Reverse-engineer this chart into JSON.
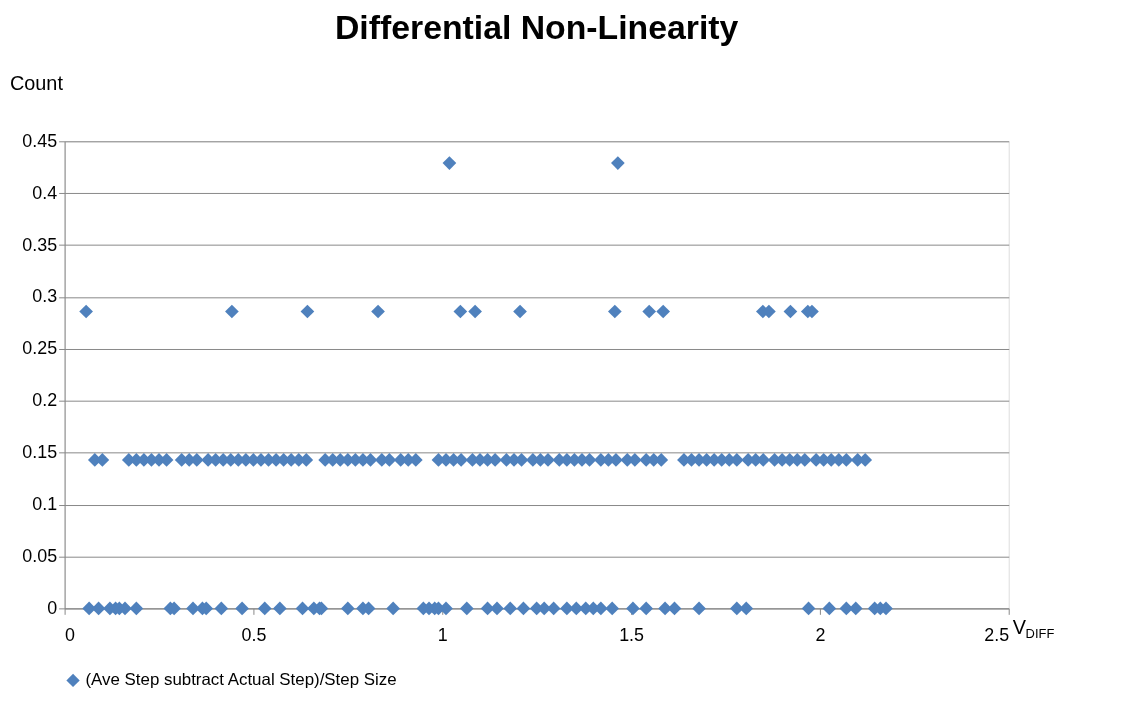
{
  "chart_data": {
    "type": "scatter",
    "title": "Differential Non-Linearity",
    "ylabel": "Count",
    "xlabel": "V$_{DIFF}$",
    "x": [
      0.057,
      0.443,
      0.643,
      0.83,
      1.048,
      1.087,
      1.206,
      1.457,
      1.548,
      1.585,
      1.849,
      1.865,
      1.922,
      1.968,
      1.979,
      1.019,
      1.465,
      0.08,
      0.1,
      0.17,
      0.19,
      0.21,
      0.23,
      0.25,
      0.27,
      0.31,
      0.33,
      0.35,
      0.38,
      0.4,
      0.42,
      0.44,
      0.46,
      0.48,
      0.5,
      0.52,
      0.54,
      0.56,
      0.58,
      0.6,
      0.62,
      0.64,
      0.69,
      0.71,
      0.73,
      0.75,
      0.77,
      0.79,
      0.81,
      0.84,
      0.86,
      0.89,
      0.91,
      0.93,
      0.99,
      1.01,
      1.03,
      1.05,
      1.08,
      1.1,
      1.12,
      1.14,
      1.17,
      1.19,
      1.21,
      1.24,
      1.26,
      1.28,
      1.31,
      1.33,
      1.35,
      1.37,
      1.39,
      1.42,
      1.44,
      1.46,
      1.49,
      1.51,
      1.54,
      1.56,
      1.58,
      1.64,
      1.66,
      1.68,
      1.7,
      1.72,
      1.74,
      1.76,
      1.78,
      1.81,
      1.83,
      1.85,
      1.88,
      1.9,
      1.92,
      1.94,
      1.96,
      1.99,
      2.01,
      2.03,
      2.05,
      2.07,
      2.1,
      2.12,
      0.065,
      0.09,
      0.12,
      0.135,
      0.145,
      0.16,
      0.19,
      0.28,
      0.29,
      0.34,
      0.365,
      0.375,
      0.415,
      0.47,
      0.53,
      0.57,
      0.63,
      0.66,
      0.675,
      0.68,
      0.75,
      0.79,
      0.805,
      0.87,
      0.95,
      0.965,
      0.98,
      0.99,
      1.01,
      1.065,
      1.12,
      1.145,
      1.18,
      1.215,
      1.25,
      1.27,
      1.295,
      1.33,
      1.355,
      1.38,
      1.4,
      1.42,
      1.45,
      1.505,
      1.54,
      1.59,
      1.615,
      1.68,
      1.78,
      1.805,
      1.97,
      2.025,
      2.07,
      2.095,
      2.145,
      2.16,
      2.175
    ],
    "series": [
      {
        "name": "(Ave Step subtract Actual Step)/Step Size",
        "color": "#4f81bd",
        "values": [
          0.286,
          0.286,
          0.286,
          0.286,
          0.286,
          0.286,
          0.286,
          0.286,
          0.286,
          0.286,
          0.286,
          0.286,
          0.286,
          0.286,
          0.286,
          0.429,
          0.429,
          0.143,
          0.143,
          0.143,
          0.143,
          0.143,
          0.143,
          0.143,
          0.143,
          0.143,
          0.143,
          0.143,
          0.143,
          0.143,
          0.143,
          0.143,
          0.143,
          0.143,
          0.143,
          0.143,
          0.143,
          0.143,
          0.143,
          0.143,
          0.143,
          0.143,
          0.143,
          0.143,
          0.143,
          0.143,
          0.143,
          0.143,
          0.143,
          0.143,
          0.143,
          0.143,
          0.143,
          0.143,
          0.143,
          0.143,
          0.143,
          0.143,
          0.143,
          0.143,
          0.143,
          0.143,
          0.143,
          0.143,
          0.143,
          0.143,
          0.143,
          0.143,
          0.143,
          0.143,
          0.143,
          0.143,
          0.143,
          0.143,
          0.143,
          0.143,
          0.143,
          0.143,
          0.143,
          0.143,
          0.143,
          0.143,
          0.143,
          0.143,
          0.143,
          0.143,
          0.143,
          0.143,
          0.143,
          0.143,
          0.143,
          0.143,
          0.143,
          0.143,
          0.143,
          0.143,
          0.143,
          0.143,
          0.143,
          0.143,
          0.143,
          0.143,
          0.143,
          0.143,
          0,
          0,
          0,
          0,
          0,
          0,
          0,
          0,
          0,
          0,
          0,
          0,
          0,
          0,
          0,
          0,
          0,
          0,
          0,
          0,
          0,
          0,
          0,
          0,
          0,
          0,
          0,
          0,
          0,
          0,
          0,
          0,
          0,
          0,
          0,
          0,
          0,
          0,
          0,
          0,
          0,
          0,
          0,
          0,
          0,
          0,
          0,
          0,
          0,
          0,
          0,
          0,
          0,
          0,
          0,
          0,
          0
        ]
      }
    ],
    "xlim": [
      0,
      2.5
    ],
    "xticks": [
      0,
      0.5,
      1,
      1.5,
      2,
      2.5
    ],
    "ylim": [
      0,
      0.45
    ],
    "yticks": [
      0,
      0.05,
      0.1,
      0.15,
      0.2,
      0.25,
      0.3,
      0.35,
      0.4,
      0.45
    ],
    "grid": "y",
    "legend": "bottom",
    "marker": "diamond"
  }
}
